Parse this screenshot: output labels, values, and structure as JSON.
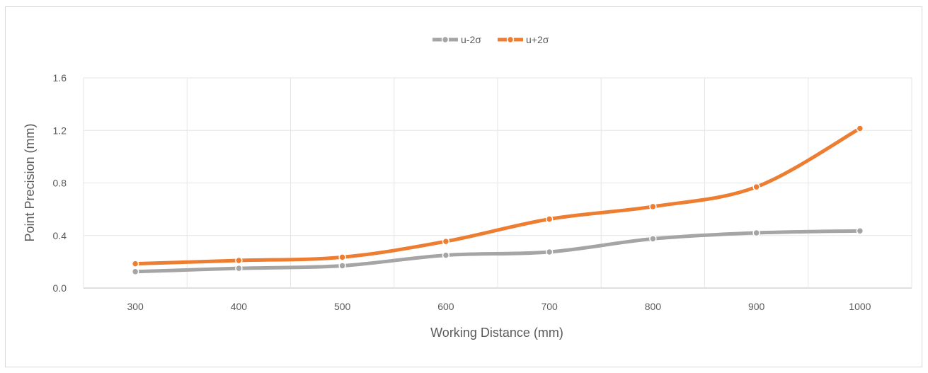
{
  "chart_data": {
    "type": "line",
    "x": [
      300,
      400,
      500,
      600,
      700,
      800,
      900,
      1000
    ],
    "xlabel": "Working Distance (mm)",
    "ylabel": "Point Precision (mm)",
    "ylim": [
      0,
      1.6
    ],
    "yticks": [
      "0.0",
      "0.4",
      "0.8",
      "1.2",
      "1.6"
    ],
    "grid": true,
    "smooth": true,
    "legend_position": "top",
    "series": [
      {
        "name": "u-2σ",
        "color": "#a5a5a5",
        "values": [
          0.125,
          0.15,
          0.17,
          0.25,
          0.275,
          0.375,
          0.42,
          0.435
        ]
      },
      {
        "name": "u+2σ",
        "color": "#ed7d31",
        "values": [
          0.185,
          0.21,
          0.235,
          0.355,
          0.525,
          0.62,
          0.77,
          1.215
        ]
      }
    ]
  }
}
